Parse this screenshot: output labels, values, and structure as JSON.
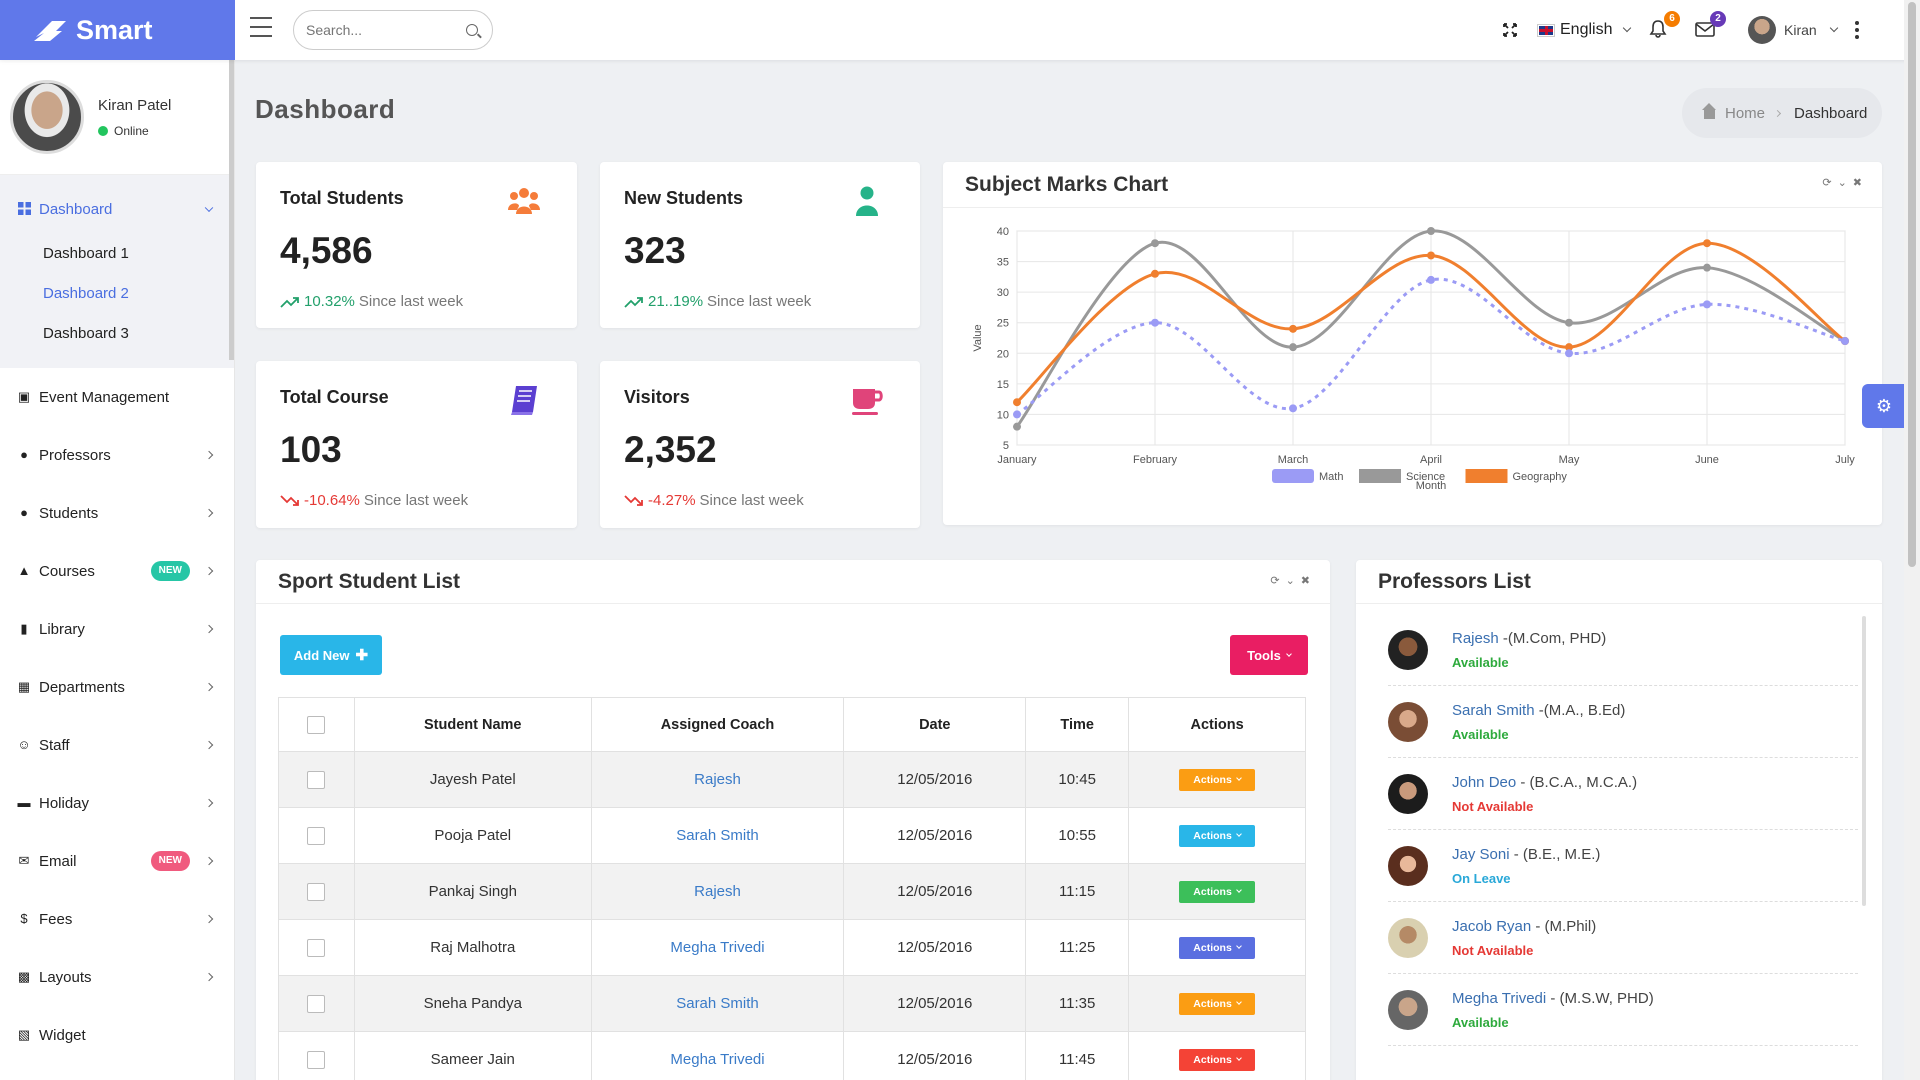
{
  "brand": {
    "name": "Smart"
  },
  "header": {
    "search_placeholder": "Search...",
    "language": "English",
    "notifications_count": "6",
    "messages_count": "2",
    "user_name": "Kiran",
    "colors": {
      "notif_badge": "#f57c00",
      "mail_badge": "#673ab7"
    }
  },
  "profile": {
    "name": "Kiran Patel",
    "status": "Online"
  },
  "sidebar": {
    "dashboard": {
      "label": "Dashboard",
      "subitems": [
        "Dashboard 1",
        "Dashboard 2",
        "Dashboard 3"
      ]
    },
    "items": [
      {
        "label": "Event Management",
        "icon": "calendar-icon"
      },
      {
        "label": "Professors",
        "icon": "person-icon"
      },
      {
        "label": "Students",
        "icon": "group-icon"
      },
      {
        "label": "Courses",
        "icon": "graduation-cap-icon",
        "badge": "NEW"
      },
      {
        "label": "Library",
        "icon": "book-icon"
      },
      {
        "label": "Departments",
        "icon": "building-icon"
      },
      {
        "label": "Staff",
        "icon": "face-icon"
      },
      {
        "label": "Holiday",
        "icon": "bed-icon"
      },
      {
        "label": "Email",
        "icon": "mail-icon",
        "badge": "NEW"
      },
      {
        "label": "Fees",
        "icon": "dollar-icon"
      },
      {
        "label": "Layouts",
        "icon": "layout-icon"
      },
      {
        "label": "Widget",
        "icon": "widget-icon"
      }
    ],
    "colors": {
      "accent": "#4a6ee0",
      "courses_badge": "#26c6a6",
      "email_badge": "#f05a7e"
    }
  },
  "page": {
    "title": "Dashboard",
    "breadcrumb": {
      "home": "Home",
      "current": "Dashboard"
    }
  },
  "stats": [
    {
      "title": "Total Students",
      "value": "4,586",
      "change": "10.32%",
      "suffix": "Since last week",
      "trend": "up",
      "icon": "users-icon",
      "color": "#f57c3a"
    },
    {
      "title": "New Students",
      "value": "323",
      "change": "21..19%",
      "suffix": "Since last week",
      "trend": "up",
      "icon": "user-icon",
      "color": "#26b389"
    },
    {
      "title": "Total Course",
      "value": "103",
      "change": "-10.64%",
      "suffix": "Since last week",
      "trend": "down",
      "icon": "book-icon",
      "color": "#5b3fd1"
    },
    {
      "title": "Visitors",
      "value": "2,352",
      "change": "-4.27%",
      "suffix": "Since last week",
      "trend": "down",
      "icon": "coffee-cup-icon",
      "color": "#e0447a"
    }
  ],
  "chart_card": {
    "title": "Subject Marks Chart"
  },
  "chart_data": {
    "type": "line",
    "title": "Subject Marks Chart",
    "xlabel": "Month",
    "ylabel": "Value",
    "categories": [
      "January",
      "February",
      "March",
      "April",
      "May",
      "June",
      "July"
    ],
    "ylim": [
      5,
      40
    ],
    "yticks": [
      5,
      10,
      15,
      20,
      25,
      30,
      35,
      40
    ],
    "grid": true,
    "legend": "bottom",
    "series": [
      {
        "name": "Math",
        "values": [
          10,
          25,
          11,
          32,
          20,
          28,
          22
        ],
        "color": "#9b9bf5",
        "dashed": true
      },
      {
        "name": "Science",
        "values": [
          8,
          38,
          21,
          40,
          25,
          34,
          22
        ],
        "color": "#999999",
        "dashed": false
      },
      {
        "name": "Geography",
        "values": [
          12,
          33,
          24,
          36,
          21,
          38,
          22
        ],
        "color": "#f07f2e",
        "dashed": false
      }
    ]
  },
  "sport_list": {
    "title": "Sport Student List",
    "add_new": "Add New",
    "tools": "Tools",
    "columns": [
      "Student Name",
      "Assigned Coach",
      "Date",
      "Time",
      "Actions"
    ],
    "rows": [
      {
        "name": "Jayesh Patel",
        "coach": "Rajesh",
        "date": "12/05/2016",
        "time": "10:45",
        "action": "Actions",
        "action_color": "#fb9d13"
      },
      {
        "name": "Pooja Patel",
        "coach": "Sarah Smith",
        "date": "12/05/2016",
        "time": "10:55",
        "action": "Actions",
        "action_color": "#29b6e8"
      },
      {
        "name": "Pankaj Singh",
        "coach": "Rajesh",
        "date": "12/05/2016",
        "time": "11:15",
        "action": "Actions",
        "action_color": "#3cbf5a"
      },
      {
        "name": "Raj Malhotra",
        "coach": "Megha Trivedi",
        "date": "12/05/2016",
        "time": "11:25",
        "action": "Actions",
        "action_color": "#5a6fe0"
      },
      {
        "name": "Sneha Pandya",
        "coach": "Sarah Smith",
        "date": "12/05/2016",
        "time": "11:35",
        "action": "Actions",
        "action_color": "#fb9d13"
      },
      {
        "name": "Sameer Jain",
        "coach": "Megha Trivedi",
        "date": "12/05/2016",
        "time": "11:45",
        "action": "Actions",
        "action_color": "#f44336"
      }
    ],
    "colors": {
      "add_new": "#29b6e8",
      "tools": "#e91e63"
    }
  },
  "professors": {
    "title": "Professors List",
    "items": [
      {
        "name": "Rajesh",
        "degree": "-(M.Com, PHD)",
        "status": "Available",
        "status_color": "#2eaa3d"
      },
      {
        "name": "Sarah Smith",
        "degree": "-(M.A., B.Ed)",
        "status": "Available",
        "status_color": "#2eaa3d"
      },
      {
        "name": "John Deo",
        "degree": "- (B.C.A., M.C.A.)",
        "status": "Not Available",
        "status_color": "#e53935"
      },
      {
        "name": "Jay Soni",
        "degree": "- (B.E., M.E.)",
        "status": "On Leave",
        "status_color": "#29a8d8"
      },
      {
        "name": "Jacob Ryan",
        "degree": "- (M.Phil)",
        "status": "Not Available",
        "status_color": "#e53935"
      },
      {
        "name": "Megha Trivedi",
        "degree": "- (M.S.W, PHD)",
        "status": "Available",
        "status_color": "#2eaa3d"
      }
    ]
  }
}
